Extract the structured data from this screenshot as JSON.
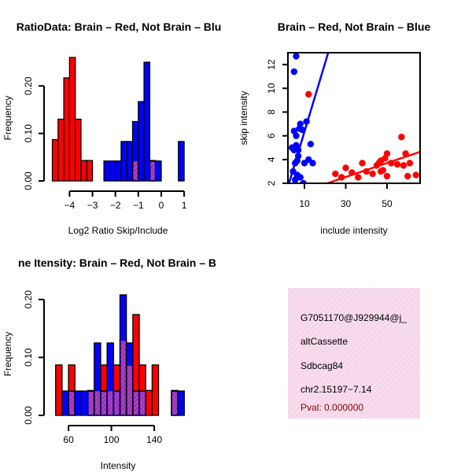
{
  "chart_data": [
    {
      "type": "bar",
      "title": "RatioData: Brain – Red, Not Brain – Blu",
      "xlabel": "Log2 Ratio Skip/Include",
      "ylabel": "Frequency",
      "xlim": [
        -4.7,
        1.1
      ],
      "ylim": [
        0,
        0.27
      ],
      "xticks": [
        -4,
        -3,
        -2,
        -1,
        0,
        1
      ],
      "xtick_labels": [
        "−4",
        "−3",
        "−2",
        "−1",
        "0",
        "1"
      ],
      "yticks": [
        0,
        0.1,
        0.2
      ],
      "ytick_labels": [
        "0.00",
        "0.10",
        "0.20"
      ],
      "bin_width": 0.25,
      "series": [
        {
          "name": "Brain",
          "color": "#ff0000",
          "bins": [
            [
              -4.75,
              0.087
            ],
            [
              -4.5,
              0.13
            ],
            [
              -4.25,
              0.217
            ],
            [
              -4.0,
              0.26
            ],
            [
              -3.75,
              0.13
            ],
            [
              -3.5,
              0.043
            ],
            [
              -3.25,
              0.043
            ],
            [
              -1.25,
              0.043
            ],
            [
              -0.5,
              0.043
            ]
          ]
        },
        {
          "name": "Not Brain",
          "color": "#0000ff",
          "bins": [
            [
              -2.5,
              0.042
            ],
            [
              -2.25,
              0.042
            ],
            [
              -2.0,
              0.042
            ],
            [
              -1.75,
              0.083
            ],
            [
              -1.5,
              0.083
            ],
            [
              -1.25,
              0.125
            ],
            [
              -1.0,
              0.167
            ],
            [
              -0.75,
              0.25
            ],
            [
              -0.5,
              0.042
            ],
            [
              -0.25,
              0.042
            ],
            [
              0.75,
              0.083
            ]
          ]
        }
      ]
    },
    {
      "type": "scatter",
      "title": "Brain – Red, Not Brain – Blue",
      "xlabel": "include intensity",
      "ylabel": "skip intensity",
      "xlim": [
        2,
        66
      ],
      "ylim": [
        2,
        13
      ],
      "xticks": [
        10,
        30,
        50
      ],
      "yticks": [
        2,
        4,
        6,
        8,
        10,
        12
      ],
      "series": [
        {
          "name": "Brain",
          "color": "#ff0000",
          "points": [
            [
              12,
              9.5
            ],
            [
              25,
              2.8
            ],
            [
              28,
              2.5
            ],
            [
              30,
              3.3
            ],
            [
              33,
              2.9
            ],
            [
              36,
              2.5
            ],
            [
              38,
              3.7
            ],
            [
              40,
              3.0
            ],
            [
              43,
              2.8
            ],
            [
              45,
              3.5
            ],
            [
              46,
              3.7
            ],
            [
              47,
              3.9
            ],
            [
              47,
              3.0
            ],
            [
              48,
              3.1
            ],
            [
              49,
              4.1
            ],
            [
              50,
              4.5
            ],
            [
              50,
              2.6
            ],
            [
              52,
              3.7
            ],
            [
              55,
              3.6
            ],
            [
              57,
              5.9
            ],
            [
              58,
              3.5
            ],
            [
              59,
              4.5
            ],
            [
              60,
              2.6
            ],
            [
              61,
              3.7
            ],
            [
              64,
              2.7
            ]
          ],
          "fit": {
            "x1": 21,
            "y1": 2,
            "x2": 66,
            "y2": 4.65
          }
        },
        {
          "name": "Not Brain",
          "color": "#0000ff",
          "points": [
            [
              4,
              5.0
            ],
            [
              4.5,
              3.0
            ],
            [
              5,
              11.4
            ],
            [
              5,
              4.8
            ],
            [
              5,
              6.4
            ],
            [
              5.5,
              2.3
            ],
            [
              5.5,
              3.7
            ],
            [
              6,
              12.7
            ],
            [
              6,
              6.0
            ],
            [
              6,
              5.2
            ],
            [
              6.5,
              2.7
            ],
            [
              6.5,
              3.9
            ],
            [
              7,
              4.8
            ],
            [
              7,
              4.3
            ],
            [
              7.5,
              6.6
            ],
            [
              8,
              2.5
            ],
            [
              8,
              7.0
            ],
            [
              9,
              6.5
            ],
            [
              9.5,
              2.0
            ],
            [
              10,
              3.7
            ],
            [
              11,
              7.2
            ],
            [
              12,
              4.0
            ],
            [
              13,
              5.3
            ],
            [
              14,
              3.7
            ]
          ],
          "fit": {
            "x1": 2.5,
            "y1": 2,
            "x2": 21.5,
            "y2": 13
          }
        }
      ]
    },
    {
      "type": "bar",
      "title": "ne Itensity: Brain – Red, Not Brain – B",
      "xlabel": "Intensity",
      "ylabel": "Frequency",
      "xlim": [
        46,
        170
      ],
      "ylim": [
        0,
        0.22
      ],
      "xticks": [
        60,
        100,
        140
      ],
      "yticks": [
        0,
        0.1,
        0.2
      ],
      "ytick_labels": [
        "0.00",
        "0.10",
        "0.20"
      ],
      "bin_width": 6,
      "series": [
        {
          "name": "Brain",
          "color": "#ff0000",
          "bins": [
            [
              48,
              0.087
            ],
            [
              54,
              0.0
            ],
            [
              60,
              0.087
            ],
            [
              66,
              0.0
            ],
            [
              72,
              0.0
            ],
            [
              78,
              0.043
            ],
            [
              84,
              0.043
            ],
            [
              90,
              0.087
            ],
            [
              96,
              0.043
            ],
            [
              102,
              0.087
            ],
            [
              108,
              0.13
            ],
            [
              114,
              0.087
            ],
            [
              120,
              0.174
            ],
            [
              126,
              0.087
            ],
            [
              132,
              0.043
            ],
            [
              138,
              0.087
            ],
            [
              144,
              0.0
            ],
            [
              150,
              0.0
            ],
            [
              156,
              0.043
            ]
          ]
        },
        {
          "name": "Not Brain",
          "color": "#0000ff",
          "bins": [
            [
              54,
              0.042
            ],
            [
              60,
              0.042
            ],
            [
              66,
              0.042
            ],
            [
              72,
              0.042
            ],
            [
              78,
              0.042
            ],
            [
              84,
              0.125
            ],
            [
              90,
              0.042
            ],
            [
              96,
              0.125
            ],
            [
              102,
              0.042
            ],
            [
              108,
              0.208
            ],
            [
              114,
              0.125
            ],
            [
              120,
              0.042
            ],
            [
              126,
              0.042
            ],
            [
              132,
              0.0
            ],
            [
              138,
              0.0
            ],
            [
              144,
              0.0
            ],
            [
              150,
              0.0
            ],
            [
              156,
              0.042
            ],
            [
              162,
              0.042
            ]
          ]
        }
      ]
    }
  ],
  "info": {
    "id": "G7051170@J929944@j_",
    "event_type": "altCassette",
    "gene": "Sdbcag84",
    "location": "chr2.15197−7.14",
    "pval": "Pval: 0.000000",
    "bg_color": "#f7dcec",
    "hatch_color": "#f0c0dc"
  }
}
